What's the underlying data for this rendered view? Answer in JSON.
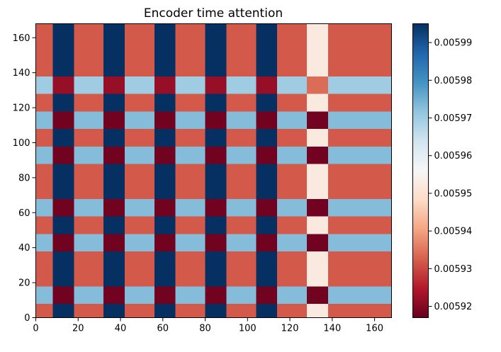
{
  "chart_data": {
    "type": "heatmap",
    "title": "Encoder time attention",
    "xlabel": "",
    "ylabel": "",
    "xlim": [
      0,
      168
    ],
    "ylim": [
      0,
      168
    ],
    "x_ticks": [
      0,
      20,
      40,
      60,
      80,
      100,
      120,
      140,
      160
    ],
    "y_ticks": [
      0,
      20,
      40,
      60,
      80,
      100,
      120,
      140,
      160
    ],
    "colormap": "RdBu",
    "vmin": 0.005917,
    "vmax": 0.005995,
    "colorbar": {
      "ticks": [
        0.00592,
        0.00593,
        0.00594,
        0.00595,
        0.00596,
        0.00597,
        0.00598,
        0.00599
      ],
      "tick_labels": [
        "0.00592",
        "0.00593",
        "0.00594",
        "0.00595",
        "0.00596",
        "0.00597",
        "0.00598",
        "0.00599"
      ]
    },
    "column_bands": [
      {
        "x0": 0,
        "x1": 8,
        "kind": "base"
      },
      {
        "x0": 8,
        "x1": 18,
        "kind": "high"
      },
      {
        "x0": 18,
        "x1": 32,
        "kind": "base"
      },
      {
        "x0": 32,
        "x1": 42,
        "kind": "high"
      },
      {
        "x0": 42,
        "x1": 56,
        "kind": "base"
      },
      {
        "x0": 56,
        "x1": 66,
        "kind": "high"
      },
      {
        "x0": 66,
        "x1": 80,
        "kind": "base"
      },
      {
        "x0": 80,
        "x1": 90,
        "kind": "high"
      },
      {
        "x0": 90,
        "x1": 104,
        "kind": "base"
      },
      {
        "x0": 104,
        "x1": 114,
        "kind": "high"
      },
      {
        "x0": 114,
        "x1": 128,
        "kind": "base"
      },
      {
        "x0": 128,
        "x1": 138,
        "kind": "special"
      },
      {
        "x0": 138,
        "x1": 168,
        "kind": "base"
      }
    ],
    "row_bands": [
      {
        "y0": 0,
        "y1": 8,
        "kind": "base"
      },
      {
        "y0": 8,
        "y1": 18,
        "kind": "alt"
      },
      {
        "y0": 18,
        "y1": 28,
        "kind": "base"
      },
      {
        "y0": 28,
        "y1": 38,
        "kind": "base"
      },
      {
        "y0": 38,
        "y1": 48,
        "kind": "alt"
      },
      {
        "y0": 48,
        "y1": 58,
        "kind": "base"
      },
      {
        "y0": 58,
        "y1": 68,
        "kind": "alt"
      },
      {
        "y0": 68,
        "y1": 78,
        "kind": "base"
      },
      {
        "y0": 78,
        "y1": 88,
        "kind": "base"
      },
      {
        "y0": 88,
        "y1": 98,
        "kind": "alt"
      },
      {
        "y0": 98,
        "y1": 108,
        "kind": "base"
      },
      {
        "y0": 108,
        "y1": 118,
        "kind": "alt"
      },
      {
        "y0": 118,
        "y1": 128,
        "kind": "base"
      },
      {
        "y0": 128,
        "y1": 138,
        "kind": "alt2"
      },
      {
        "y0": 138,
        "y1": 168,
        "kind": "base"
      }
    ],
    "cell_values": {
      "base": {
        "base": 0.005932,
        "high": 0.005995,
        "special": 0.005952
      },
      "alt": {
        "base": 0.005973,
        "high": 0.005918,
        "special": 0.005918
      },
      "alt2": {
        "base": 0.00597,
        "high": 0.005922,
        "special": 0.005934
      }
    }
  }
}
